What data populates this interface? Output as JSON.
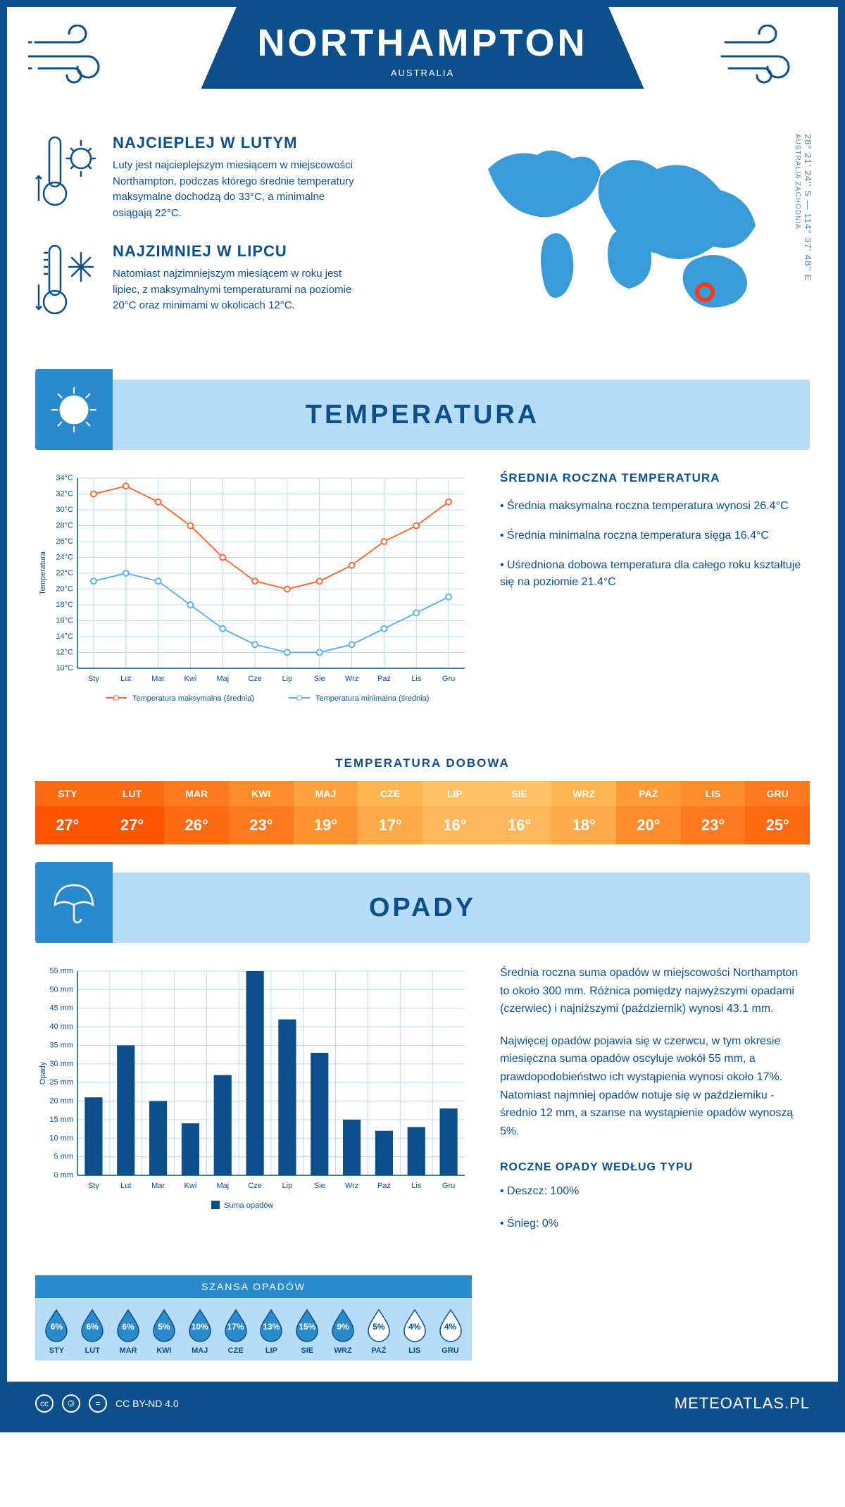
{
  "header": {
    "title": "NORTHAMPTON",
    "subtitle": "AUSTRALIA"
  },
  "coords": {
    "text": "28° 21' 24'' S — 114° 37' 48'' E",
    "region": "AUSTRALIA ZACHODNIA"
  },
  "facts": {
    "warm": {
      "title": "NAJCIEPLEJ W LUTYM",
      "text": "Luty jest najcieplejszym miesiącem w miejscowości Northampton, podczas którego średnie temperatury maksymalne dochodzą do 33°C, a minimalne osiągają 22°C."
    },
    "cold": {
      "title": "NAJZIMNIEJ W LIPCU",
      "text": "Natomiast najzimniejszym miesiącem w roku jest lipiec, z maksymalnymi temperaturami na poziomie 20°C oraz minimami w okolicach 12°C."
    }
  },
  "sections": {
    "temperature": "TEMPERATURA",
    "precipitation": "OPADY"
  },
  "temp_chart": {
    "type": "line",
    "months": [
      "Sty",
      "Lut",
      "Mar",
      "Kwi",
      "Maj",
      "Cze",
      "Lip",
      "Sie",
      "Wrz",
      "Paź",
      "Lis",
      "Gru"
    ],
    "max_series": [
      32,
      33,
      31,
      28,
      24,
      21,
      20,
      21,
      23,
      26,
      28,
      31
    ],
    "min_series": [
      21,
      22,
      21,
      18,
      15,
      13,
      12,
      12,
      13,
      15,
      17,
      19
    ],
    "max_color": "#ff6b35",
    "min_color": "#5fb3e8",
    "ylabel": "Temperatura",
    "ylim": [
      10,
      34
    ],
    "ytick_step": 2,
    "ytick_suffix": "°C",
    "grid_color": "#b7dcf7",
    "background": "#ffffff",
    "legend_max": "Temperatura maksymalna (średnia)",
    "legend_min": "Temperatura minimalna (średnia)",
    "line_width": 2,
    "marker": "circle",
    "marker_size": 4
  },
  "temp_info": {
    "title": "ŚREDNIA ROCZNA TEMPERATURA",
    "b1": "• Średnia maksymalna roczna temperatura wynosi 26.4°C",
    "b2": "• Średnia minimalna roczna temperatura sięga 16.4°C",
    "b3": "• Uśredniona dobowa temperatura dla całego roku kształtuje się na poziomie 21.4°C"
  },
  "daily_temp": {
    "title": "TEMPERATURA DOBOWA",
    "months": [
      "STY",
      "LUT",
      "MAR",
      "KWI",
      "MAJ",
      "CZE",
      "LIP",
      "SIE",
      "WRZ",
      "PAŹ",
      "LIS",
      "GRU"
    ],
    "values": [
      "27°",
      "27°",
      "26°",
      "23°",
      "19°",
      "17°",
      "16°",
      "16°",
      "18°",
      "20°",
      "23°",
      "25°"
    ],
    "header_colors": [
      "#ff6a13",
      "#ff6a13",
      "#ff7a1f",
      "#ff8c2b",
      "#ffa23d",
      "#ffb552",
      "#ffc266",
      "#ffc266",
      "#ffb552",
      "#ff9a36",
      "#ff8c2b",
      "#ff7a1f"
    ],
    "value_colors": [
      "#ff5500",
      "#ff5500",
      "#ff6a13",
      "#ff7a1f",
      "#ff9433",
      "#ffaa4a",
      "#ffb85c",
      "#ffb85c",
      "#ffaa4a",
      "#ff8c2b",
      "#ff7a1f",
      "#ff6a13"
    ]
  },
  "precip_chart": {
    "type": "bar",
    "months": [
      "Sty",
      "Lut",
      "Mar",
      "Kwi",
      "Maj",
      "Cze",
      "Lip",
      "Sie",
      "Wrz",
      "Paź",
      "Lis",
      "Gru"
    ],
    "values": [
      21,
      35,
      20,
      14,
      27,
      55,
      42,
      33,
      15,
      12,
      13,
      18
    ],
    "bar_color": "#0d4f8b",
    "ylabel": "Opady",
    "ylim": [
      0,
      55
    ],
    "ytick_step": 5,
    "ytick_suffix": " mm",
    "grid_color": "#b7dcf7",
    "bar_width": 0.55,
    "legend": "Suma opadów"
  },
  "precip_info": {
    "p1": "Średnia roczna suma opadów w miejscowości Northampton to około 300 mm. Różnica pomiędzy najwyższymi opadami (czerwiec) i najniższymi (październik) wynosi 43.1 mm.",
    "p2": "Najwięcej opadów pojawia się w czerwcu, w tym okresie miesięczna suma opadów oscyluje wokół 55 mm, a prawdopodobieństwo ich wystąpienia wynosi około 17%. Natomiast najmniej opadów notuje się w październiku - średnio 12 mm, a szanse na wystąpienie opadów wynoszą 5%.",
    "type_title": "ROCZNE OPADY WEDŁUG TYPU",
    "rain": "• Deszcz: 100%",
    "snow": "• Śnieg: 0%"
  },
  "chance": {
    "title": "SZANSA OPADÓW",
    "months": [
      "STY",
      "LUT",
      "MAR",
      "KWI",
      "MAJ",
      "CZE",
      "LIP",
      "SIE",
      "WRZ",
      "PAŹ",
      "LIS",
      "GRU"
    ],
    "values": [
      "6%",
      "6%",
      "6%",
      "5%",
      "10%",
      "17%",
      "13%",
      "15%",
      "9%",
      "5%",
      "4%",
      "4%"
    ],
    "filled": [
      true,
      true,
      true,
      true,
      true,
      true,
      true,
      true,
      true,
      false,
      false,
      false
    ],
    "fill_color": "#2b8acb",
    "empty_color": "#ffffff",
    "text_filled": "#ffffff",
    "text_empty": "#0d4f8b"
  },
  "footer": {
    "license": "CC BY-ND 4.0",
    "brand": "METEOATLAS.PL"
  }
}
